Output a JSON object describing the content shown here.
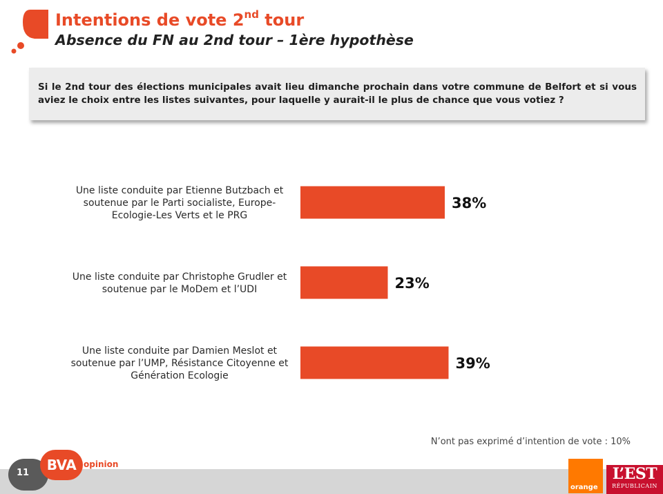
{
  "header": {
    "title": "Intentions de vote 2",
    "title_sup": "nd",
    "title_end": " tour",
    "subtitle": "Absence du FN au 2nd tour – 1ère hypothèse"
  },
  "question": "Si le 2nd tour des élections municipales avait lieu dimanche prochain dans votre commune de Belfort et si vous aviez le choix entre les listes suivantes, pour laquelle y aurait-il le plus de chance que vous votiez ?",
  "colors": {
    "accent": "#e84a27",
    "bar": "#e84a27"
  },
  "chart_data": {
    "type": "bar",
    "orientation": "horizontal",
    "categories": [
      [
        "Une liste conduite par Etienne Butzbach et",
        "soutenue par le Parti socialiste, Europe-",
        "Ecologie-Les Verts et le PRG"
      ],
      [
        "Une liste conduite par Christophe Grudler et",
        "soutenue par le MoDem et l’UDI"
      ],
      [
        "Une liste conduite par Damien Meslot et",
        "soutenue par l’UMP, Résistance Citoyenne et",
        "Génération Ecologie"
      ]
    ],
    "values": [
      38,
      23,
      39
    ],
    "value_labels": [
      "38%",
      "23%",
      "39%"
    ],
    "unit": "%",
    "xlim": [
      0,
      100
    ],
    "grid": false,
    "legend": "none"
  },
  "note": "N’ont pas exprimé d’intention de vote : 10%",
  "footer": {
    "page_number": "11",
    "bva_logo": "BVA",
    "bva_opinion": "opinion",
    "orange_logo": "orange",
    "est_logo": "L’EST",
    "est_logo_sub": "RÉPUBLICAIN"
  }
}
